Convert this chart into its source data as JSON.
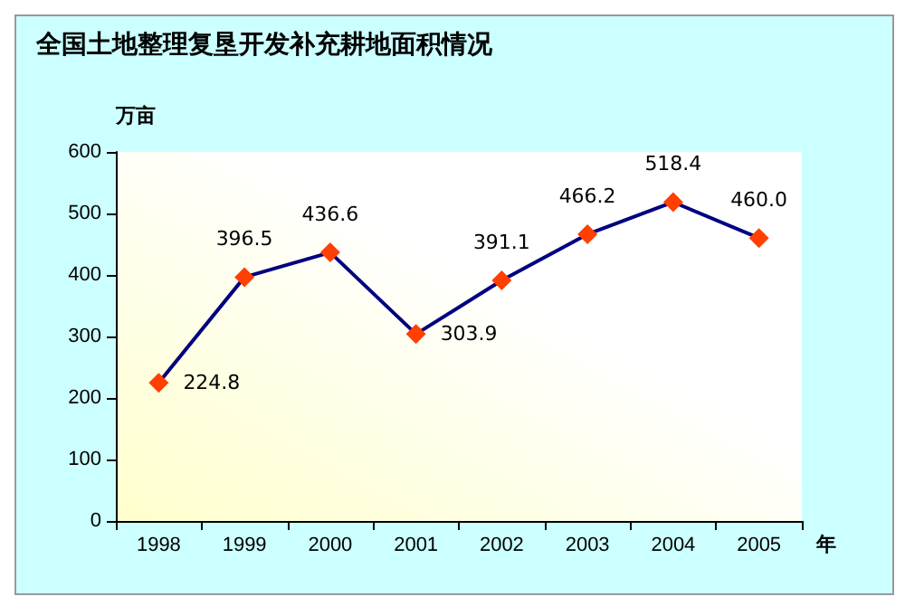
{
  "chart_data": {
    "type": "line",
    "title": "全国土地整理复垦开发补充耕地面积情况",
    "ylabel": "万亩",
    "xlabel": "年",
    "categories": [
      "1998",
      "1999",
      "2000",
      "2001",
      "2002",
      "2003",
      "2004",
      "2005"
    ],
    "series": [
      {
        "color": "#000080",
        "values": [
          224.8,
          396.5,
          436.6,
          303.9,
          391.1,
          466.2,
          518.4,
          460.0
        ],
        "colors": [
          "#ff4000",
          "#ff4000",
          "#ff4000",
          "#ff4000",
          "#ff4000",
          "#ff4000",
          "#ff4000",
          "#ff4000"
        ],
        "value_labels": [
          "224.8",
          "396.5",
          "436.6",
          "303.9",
          "391.1",
          "466.2",
          "518.4",
          "460.0"
        ]
      }
    ],
    "marker": "diamond",
    "line_style": "solid",
    "ylim": [
      0,
      600
    ],
    "yticks": [
      0,
      100,
      200,
      300,
      400,
      500,
      600
    ],
    "grid": false
  }
}
